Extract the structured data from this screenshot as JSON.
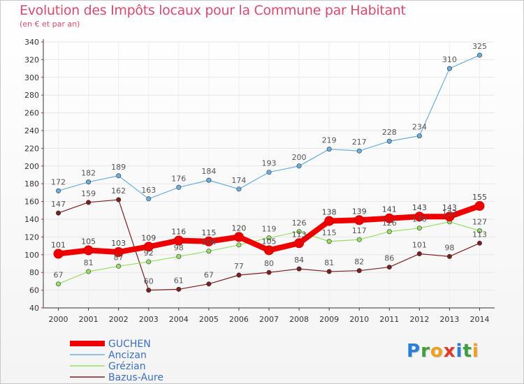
{
  "title": "Evolution des Impôts locaux pour la Commune par Habitant",
  "subtitle": "(en € et par an)",
  "logo": {
    "letters": [
      "P",
      "r",
      "o",
      "x",
      "i",
      "t",
      "i"
    ],
    "colors": [
      "#2a7fd4",
      "#3f9f3f",
      "#f0a020",
      "#e03a2a",
      "#2a7fd4",
      "#3f9f3f",
      "#f0a020"
    ]
  },
  "chart_data": {
    "type": "line",
    "x": [
      "2000",
      "2001",
      "2002",
      "2003",
      "2004",
      "2005",
      "2006",
      "2007",
      "2008",
      "2009",
      "2010",
      "2011",
      "2012",
      "2013",
      "2014"
    ],
    "ylim": [
      40,
      340
    ],
    "yticks": [
      40,
      60,
      80,
      100,
      120,
      140,
      160,
      180,
      200,
      220,
      240,
      260,
      280,
      300,
      320,
      340
    ],
    "grid": true,
    "legend_position": "bottom-left",
    "series": [
      {
        "name": "Bazus-Aure",
        "color": "#7a1f1f",
        "values": [
          147,
          159,
          162,
          60,
          61,
          67,
          77,
          80,
          84,
          81,
          82,
          86,
          101,
          98,
          113
        ]
      },
      {
        "name": "Grézian",
        "color": "#99dd66",
        "values": [
          67,
          81,
          87,
          92,
          98,
          104,
          111,
          119,
          126,
          115,
          117,
          126,
          130,
          137,
          127
        ]
      },
      {
        "name": "Ancizan",
        "color": "#6aaedd",
        "values": [
          172,
          182,
          189,
          163,
          176,
          184,
          174,
          193,
          200,
          219,
          217,
          228,
          234,
          310,
          325
        ]
      },
      {
        "name": "GUCHEN",
        "color": "#ee0000",
        "values": [
          101,
          105,
          103,
          109,
          116,
          115,
          120,
          105,
          113,
          138,
          139,
          141,
          143,
          143,
          155
        ]
      }
    ],
    "labels": [
      {
        "series": "Bazus-Aure",
        "values": [
          "147",
          "159",
          "162",
          "60",
          "61",
          "67",
          "77",
          "80",
          "84",
          "81",
          "82",
          "86",
          "101",
          "98",
          "113"
        ]
      },
      {
        "series": "Grézian",
        "values": [
          "67",
          "81",
          "87",
          "92",
          "98",
          "104",
          "",
          "119",
          "126",
          "115",
          "117",
          "126",
          "130",
          "137",
          "127"
        ]
      },
      {
        "series": "Ancizan",
        "values": [
          "172",
          "182",
          "189",
          "163",
          "176",
          "184",
          "174",
          "193",
          "200",
          "219",
          "217",
          "228",
          "234",
          "310",
          "325"
        ]
      },
      {
        "series": "GUCHEN",
        "values": [
          "101",
          "105",
          "103",
          "109",
          "116",
          "115",
          "120",
          "105",
          "113",
          "138",
          "139",
          "141",
          "143",
          "143",
          "155"
        ]
      }
    ],
    "legend_order": [
      "GUCHEN",
      "Ancizan",
      "Grézian",
      "Bazus-Aure"
    ]
  }
}
